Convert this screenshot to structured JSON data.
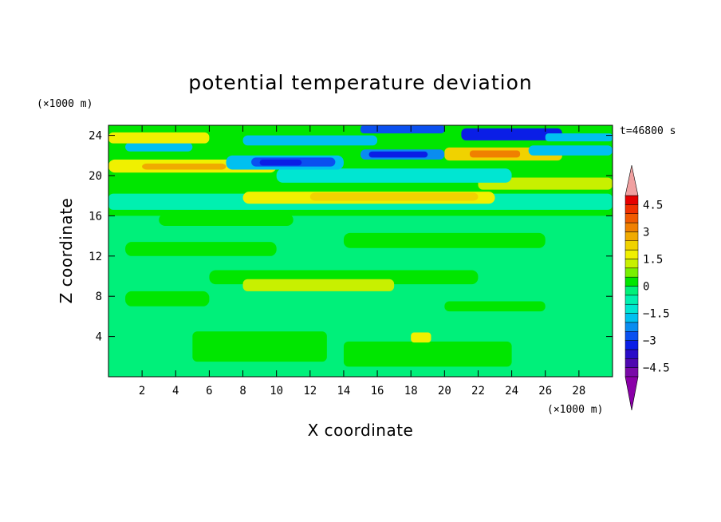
{
  "chart_data": {
    "type": "heatmap",
    "title": "potential temperature deviation",
    "xlabel": "X coordinate",
    "ylabel": "Z coordinate",
    "x_unit": "(×1000 m)",
    "y_unit": "(×1000 m)",
    "time_label": "t=46800 s",
    "xlim": [
      0,
      30
    ],
    "ylim": [
      0,
      25
    ],
    "x_ticks": [
      "2",
      "4",
      "6",
      "8",
      "10",
      "12",
      "14",
      "16",
      "18",
      "20",
      "22",
      "24",
      "26",
      "28"
    ],
    "y_ticks": [
      "4",
      "8",
      "12",
      "16",
      "20",
      "24"
    ],
    "colorbar": {
      "tick_labels": [
        "4.5",
        "3",
        "1.5",
        "0",
        "−1.5",
        "−3",
        "−4.5"
      ],
      "levels": [
        -5,
        -4.5,
        -4,
        -3.5,
        -3,
        -2.5,
        -2,
        -1.5,
        -1,
        -0.5,
        0,
        0.5,
        1,
        1.5,
        2,
        2.5,
        3,
        3.5,
        4,
        4.5,
        5
      ],
      "colors": [
        "#7a0aa8",
        "#4f08b0",
        "#2a0cc8",
        "#0a1ee6",
        "#0a50f0",
        "#0a8cf0",
        "#00c0f0",
        "#00e6d2",
        "#00f0b0",
        "#00f07a",
        "#00e600",
        "#78f000",
        "#c8f000",
        "#f0f000",
        "#f0d200",
        "#f0aa00",
        "#f08000",
        "#f05a00",
        "#f03000",
        "#e60000"
      ],
      "extend_low_color": "#8a00a8",
      "extend_high_color": "#f0a0a0"
    }
  }
}
